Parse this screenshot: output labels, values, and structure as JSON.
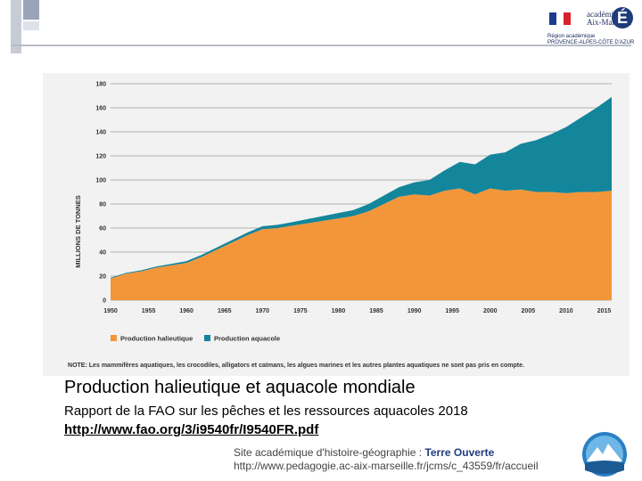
{
  "header": {
    "logo_lines": [
      "académie",
      "Aix-Marseille"
    ],
    "logo_sub": [
      "Région académique",
      "PROVENCE-ALPES-CÔTE D'AZUR"
    ]
  },
  "chart_data": {
    "type": "area",
    "stacked": true,
    "title": "",
    "xlabel": "",
    "ylabel": "MILLIONS DE TONNES",
    "ylim": [
      0,
      180
    ],
    "xlim": [
      1950,
      2016
    ],
    "y_ticks": [
      0,
      20,
      40,
      60,
      80,
      100,
      120,
      140,
      160,
      180
    ],
    "x_ticks": [
      1950,
      1955,
      1960,
      1965,
      1970,
      1975,
      1980,
      1985,
      1990,
      1995,
      2000,
      2005,
      2010,
      2015
    ],
    "grid": true,
    "legend_position": "bottom-left",
    "x": [
      1950,
      1952,
      1954,
      1956,
      1958,
      1960,
      1962,
      1964,
      1966,
      1968,
      1970,
      1972,
      1974,
      1976,
      1978,
      1980,
      1982,
      1984,
      1986,
      1988,
      1990,
      1992,
      1994,
      1996,
      1998,
      2000,
      2002,
      2004,
      2006,
      2008,
      2010,
      2012,
      2014,
      2016
    ],
    "series": [
      {
        "name": "Production halieutique",
        "color": "#f3963a",
        "values": [
          18,
          22,
          24,
          27,
          29,
          31,
          36,
          42,
          48,
          54,
          59,
          60,
          62,
          64,
          66,
          68,
          70,
          74,
          80,
          86,
          88,
          87,
          91,
          93,
          88,
          93,
          91,
          92,
          90,
          90,
          89,
          90,
          90,
          91
        ]
      },
      {
        "name": "Production aquacole",
        "color": "#13869b",
        "values": [
          0.6,
          0.7,
          0.8,
          1,
          1.2,
          1.5,
          1.7,
          1.9,
          2,
          2.2,
          2.5,
          2.7,
          3,
          3.5,
          4,
          4.5,
          5,
          6,
          7,
          8,
          10,
          13,
          17,
          22,
          25,
          28,
          32,
          38,
          43,
          48,
          55,
          62,
          70,
          78
        ]
      }
    ],
    "note": "NOTE: Les mammifères aquatiques, les crocodiles, alligators et caïmans, les algues marines et les autres plantes aquatiques ne sont pas pris en compte."
  },
  "caption": {
    "title": "Production halieutique et aquacole mondiale",
    "source": "Rapport de la FAO sur les pêches et les ressources aquacoles 2018",
    "link": "http://www.fao.org/3/i9540fr/I9540FR.pdf"
  },
  "footer": {
    "site_prefix": "Site académique d'histoire-géographie : ",
    "site_name": "Terre Ouverte",
    "url": "http://www.pedagogie.ac-aix-marseille.fr/jcms/c_43559/fr/accueil"
  }
}
